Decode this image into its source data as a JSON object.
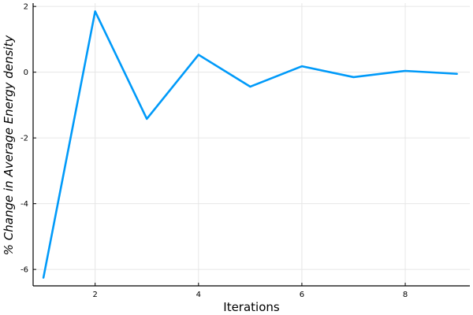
{
  "chart_data": {
    "type": "line",
    "title": "",
    "xlabel": "Iterations",
    "ylabel": "% Change in Average Energy density",
    "xlim": [
      0.8,
      9.25
    ],
    "ylim": [
      -6.5,
      2.1
    ],
    "xticks": [
      2,
      4,
      6,
      8
    ],
    "yticks": [
      -6,
      -4,
      -2,
      0,
      2
    ],
    "xtick_labels": [
      "2",
      "4",
      "6",
      "8"
    ],
    "ytick_labels": [
      "-6",
      "-4",
      "-2",
      "0",
      "2"
    ],
    "grid": true,
    "legend": "none",
    "series": [
      {
        "color": "#009af9",
        "x": [
          1,
          2,
          3,
          4,
          5,
          6,
          7,
          8,
          9
        ],
        "y": [
          -6.25,
          1.85,
          -1.42,
          0.53,
          -0.44,
          0.18,
          -0.15,
          0.04,
          -0.05
        ]
      }
    ]
  }
}
